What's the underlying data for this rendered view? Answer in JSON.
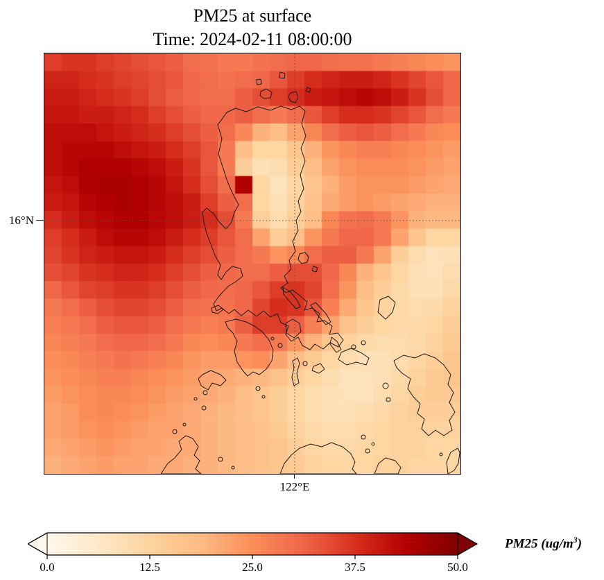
{
  "title": {
    "line1": "PM25 at surface",
    "line2": "Time: 2024-02-11 08:00:00"
  },
  "axes": {
    "y_tick_label": "16°N",
    "x_tick_label": "122°E"
  },
  "colorbar": {
    "tick_labels": [
      "0.0",
      "12.5",
      "25.0",
      "37.5",
      "50.0"
    ],
    "label_full": "PM25 (ug/m3)",
    "label_prefix": "PM25 (ug/m",
    "label_sup": "3",
    "label_suffix": ")",
    "vmin": 0,
    "vmax": 50,
    "extend": "both"
  },
  "chart_data": {
    "type": "heatmap",
    "title": "PM25 at surface",
    "subtitle": "Time: 2024-02-11 08:00:00",
    "variable": "PM25",
    "units": "ug/m3",
    "vmin": 0,
    "vmax": 50,
    "colorbar_ticks": [
      0.0,
      12.5,
      25.0,
      37.5,
      50.0
    ],
    "gridlines": {
      "y": "16°N",
      "x": "122°E"
    },
    "legend_position": "bottom",
    "colormap": {
      "name": "OrRd",
      "stops": [
        "#fff7ec",
        "#fee8c8",
        "#fdd49e",
        "#fdbb84",
        "#fc8d59",
        "#ef6548",
        "#d7301f",
        "#b30000",
        "#7f0000"
      ]
    },
    "grid_shape": [
      24,
      24
    ],
    "values": [
      [
        36,
        37,
        37,
        36,
        35,
        34,
        33,
        32,
        30,
        29,
        28,
        28,
        29,
        30,
        31,
        31,
        30,
        29,
        29,
        28,
        27,
        26,
        25,
        24
      ],
      [
        39,
        39,
        38,
        37,
        36,
        35,
        34,
        33,
        31,
        30,
        29,
        30,
        31,
        33,
        36,
        38,
        39,
        40,
        40,
        39,
        37,
        35,
        33,
        31
      ],
      [
        40,
        40,
        39,
        38,
        37,
        36,
        34,
        32,
        31,
        30,
        30,
        32,
        34,
        36,
        38,
        40,
        41,
        42,
        43,
        42,
        40,
        37,
        34,
        31
      ],
      [
        41,
        41,
        40,
        40,
        39,
        38,
        36,
        34,
        32,
        31,
        31,
        32,
        30,
        28,
        30,
        33,
        36,
        38,
        38,
        37,
        35,
        33,
        30,
        28
      ],
      [
        42,
        42,
        42,
        41,
        40,
        39,
        38,
        36,
        34,
        32,
        30,
        26,
        20,
        18,
        22,
        26,
        30,
        32,
        33,
        32,
        30,
        28,
        26,
        25
      ],
      [
        42,
        43,
        43,
        43,
        42,
        41,
        40,
        38,
        36,
        33,
        28,
        18,
        12,
        12,
        16,
        20,
        24,
        26,
        27,
        27,
        26,
        25,
        24,
        23
      ],
      [
        42,
        43,
        44,
        44,
        44,
        43,
        42,
        40,
        37,
        33,
        28,
        14,
        9,
        10,
        14,
        18,
        22,
        24,
        25,
        25,
        25,
        24,
        23,
        22
      ],
      [
        41,
        42,
        44,
        45,
        45,
        44,
        43,
        41,
        38,
        34,
        30,
        44,
        12,
        8,
        12,
        16,
        20,
        23,
        24,
        24,
        24,
        23,
        22,
        21
      ],
      [
        40,
        41,
        43,
        44,
        45,
        44,
        43,
        42,
        40,
        36,
        32,
        30,
        12,
        9,
        13,
        17,
        21,
        23,
        24,
        23,
        22,
        21,
        20,
        20
      ],
      [
        38,
        40,
        42,
        43,
        44,
        44,
        43,
        42,
        40,
        38,
        34,
        28,
        14,
        10,
        14,
        18,
        26,
        29,
        30,
        28,
        24,
        20,
        19,
        19
      ],
      [
        36,
        38,
        40,
        42,
        43,
        43,
        42,
        40,
        38,
        36,
        33,
        30,
        22,
        14,
        18,
        24,
        28,
        31,
        31,
        28,
        22,
        16,
        12,
        12
      ],
      [
        35,
        37,
        39,
        40,
        41,
        41,
        40,
        38,
        36,
        34,
        32,
        30,
        28,
        24,
        26,
        30,
        32,
        32,
        28,
        22,
        14,
        10,
        8,
        9
      ],
      [
        34,
        35,
        37,
        38,
        39,
        39,
        38,
        36,
        34,
        32,
        31,
        30,
        30,
        32,
        34,
        34,
        31,
        26,
        20,
        16,
        12,
        9,
        8,
        10
      ],
      [
        31,
        33,
        35,
        36,
        37,
        37,
        36,
        34,
        32,
        31,
        30,
        31,
        33,
        36,
        37,
        35,
        30,
        24,
        18,
        14,
        11,
        9,
        9,
        11
      ],
      [
        28,
        30,
        32,
        34,
        35,
        35,
        34,
        32,
        30,
        29,
        29,
        31,
        35,
        38,
        37,
        33,
        27,
        21,
        16,
        13,
        11,
        10,
        11,
        13
      ],
      [
        27,
        28,
        30,
        32,
        33,
        33,
        32,
        30,
        28,
        27,
        28,
        32,
        36,
        36,
        32,
        27,
        22,
        17,
        14,
        12,
        11,
        11,
        12,
        14
      ],
      [
        26,
        27,
        28,
        30,
        31,
        31,
        30,
        28,
        26,
        25,
        26,
        28,
        30,
        28,
        24,
        20,
        16,
        13,
        11,
        10,
        10,
        11,
        13,
        15
      ],
      [
        25,
        26,
        27,
        28,
        29,
        28,
        27,
        26,
        24,
        23,
        23,
        24,
        25,
        22,
        18,
        15,
        12,
        10,
        9,
        9,
        10,
        12,
        14,
        16
      ],
      [
        24,
        25,
        26,
        27,
        27,
        26,
        25,
        24,
        23,
        22,
        21,
        20,
        19,
        17,
        14,
        12,
        10,
        8,
        8,
        9,
        11,
        13,
        15,
        16
      ],
      [
        23,
        24,
        25,
        26,
        26,
        25,
        24,
        23,
        22,
        21,
        20,
        18,
        16,
        14,
        12,
        10,
        9,
        8,
        8,
        10,
        12,
        14,
        15,
        15
      ],
      [
        22,
        23,
        25,
        26,
        25,
        24,
        23,
        22,
        21,
        20,
        19,
        18,
        16,
        14,
        12,
        10,
        9,
        9,
        10,
        11,
        13,
        14,
        14,
        14
      ],
      [
        22,
        23,
        24,
        25,
        24,
        23,
        22,
        22,
        21,
        20,
        19,
        18,
        17,
        15,
        13,
        11,
        10,
        10,
        11,
        12,
        13,
        13,
        13,
        13
      ],
      [
        21,
        22,
        23,
        24,
        23,
        22,
        22,
        21,
        21,
        20,
        19,
        18,
        17,
        16,
        14,
        12,
        11,
        11,
        12,
        12,
        13,
        13,
        12,
        12
      ],
      [
        20,
        21,
        22,
        23,
        22,
        22,
        21,
        21,
        20,
        20,
        19,
        18,
        17,
        16,
        15,
        13,
        12,
        12,
        12,
        13,
        13,
        12,
        12,
        12
      ]
    ]
  }
}
